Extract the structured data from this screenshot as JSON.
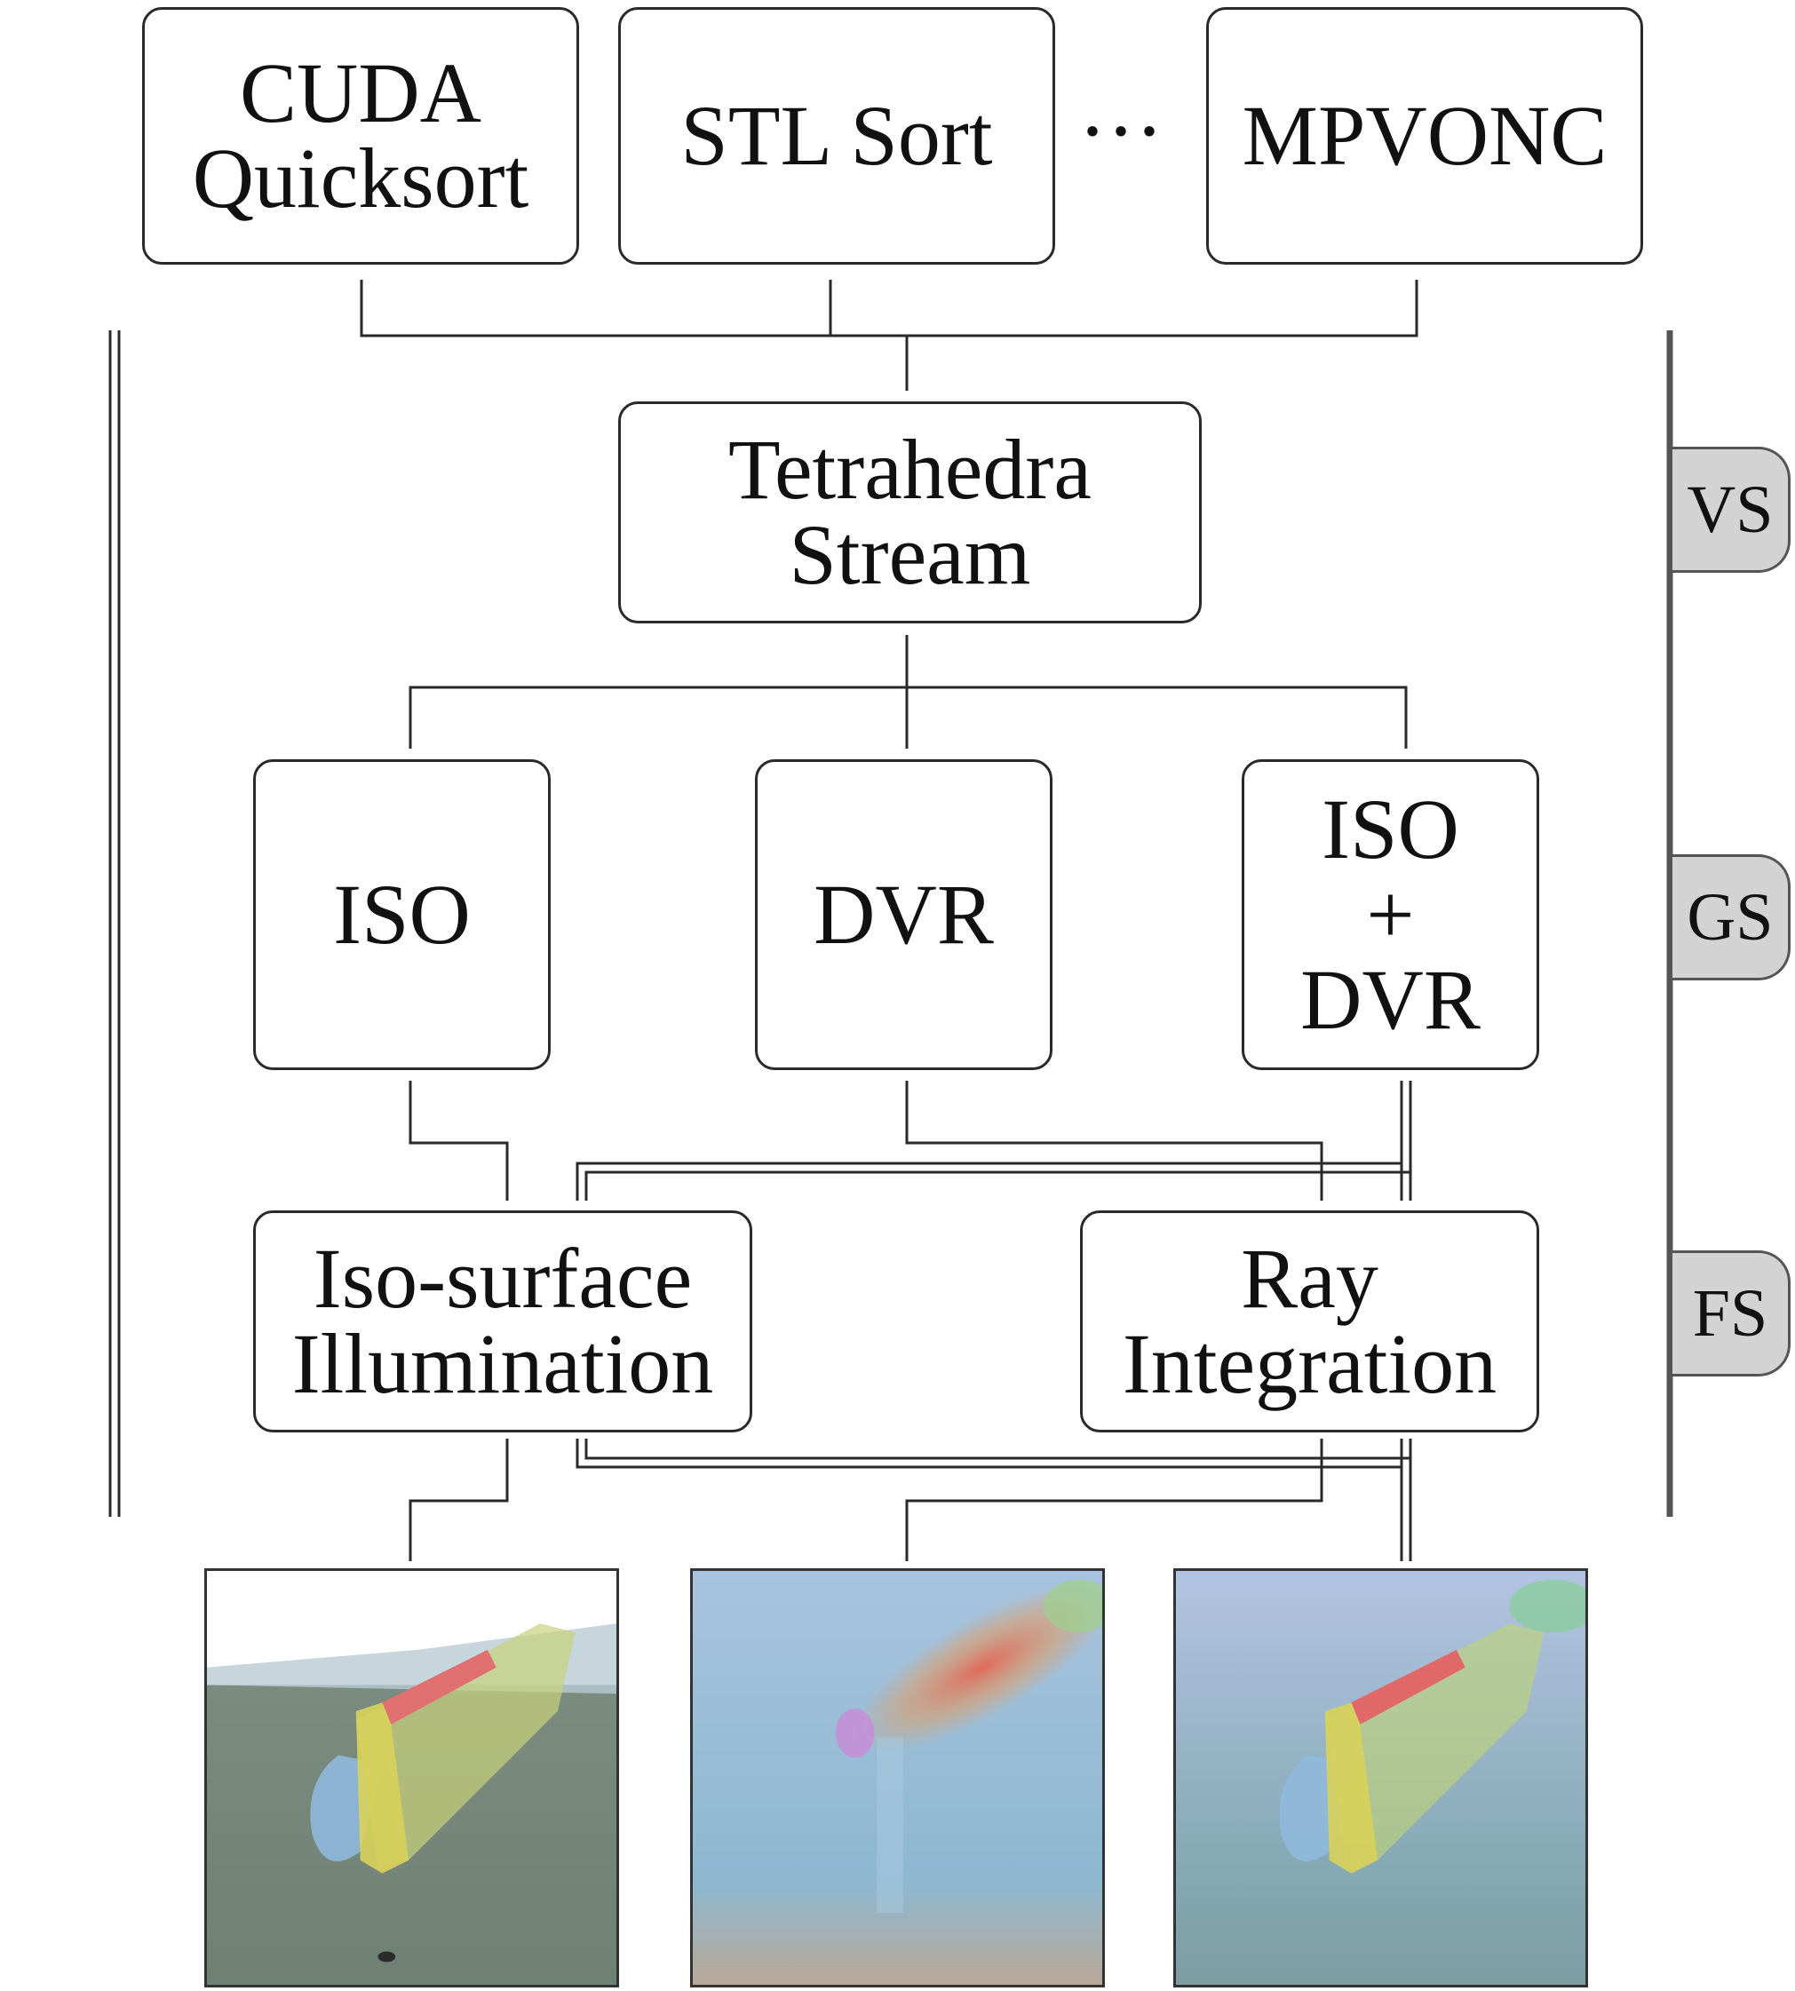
{
  "sorters": [
    {
      "lines": [
        "CUDA",
        "Quicksort"
      ]
    },
    {
      "lines": [
        "STL Sort"
      ]
    },
    {
      "lines": [
        "MPVONC"
      ]
    }
  ],
  "ellipsis": "···",
  "stream": {
    "lines": [
      "Tetrahedra",
      "Stream"
    ]
  },
  "modes": [
    {
      "lines": [
        "ISO"
      ]
    },
    {
      "lines": [
        "DVR"
      ]
    },
    {
      "lines": [
        "ISO",
        "+",
        "DVR"
      ]
    }
  ],
  "shaders": [
    {
      "lines": [
        "Iso-surface",
        "Illumination"
      ]
    },
    {
      "lines": [
        "Ray",
        "Integration"
      ]
    }
  ],
  "stages": [
    "VS",
    "GS",
    "FS"
  ],
  "outputs": [
    {
      "icon": "iso-surface-render-image"
    },
    {
      "icon": "volume-render-image"
    },
    {
      "icon": "combined-render-image"
    }
  ],
  "colors": {
    "stage_tab": "#d3d3d3",
    "line": "#2a2a2a"
  }
}
